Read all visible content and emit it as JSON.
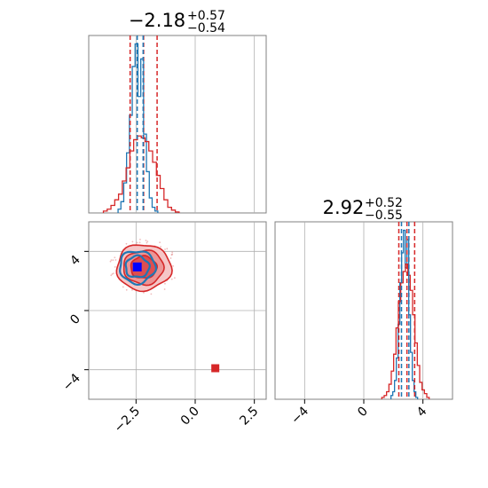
{
  "chart_data": {
    "type": "corner",
    "grid": true,
    "colors": {
      "blue": "#1f77b4",
      "red": "#d62728",
      "axis": "#808080",
      "grid": "#b0b0b0"
    },
    "panels": [
      {
        "id": "marginal-param-1",
        "type": "histogram",
        "title": {
          "median": "−2.18",
          "plus": "+0.57",
          "minus": "−0.54"
        },
        "xlim": [
          -4.5,
          3.0
        ],
        "quantile_lines": {
          "red": [
            -2.75,
            -2.18,
            -1.61
          ],
          "blue": [
            -2.45,
            -2.2
          ]
        },
        "series": [
          {
            "name": "",
            "color": "#1f77b4",
            "bin_width": 0.12,
            "x": [
              -3.2,
              -3.08,
              -2.96,
              -2.84,
              -2.72,
              -2.6,
              -2.48,
              -2.36,
              -2.24,
              -2.12,
              -2.0,
              -1.88,
              -1.76,
              -1.64
            ],
            "values": [
              0.02,
              0.06,
              0.16,
              0.32,
              0.52,
              0.78,
              0.9,
              0.62,
              0.82,
              0.42,
              0.22,
              0.08,
              0.03,
              0.01
            ]
          },
          {
            "name": "",
            "color": "#d62728",
            "bin_width": 0.16,
            "x": [
              -3.8,
              -3.64,
              -3.48,
              -3.32,
              -3.16,
              -3.0,
              -2.84,
              -2.68,
              -2.52,
              -2.36,
              -2.2,
              -2.04,
              -1.88,
              -1.72,
              -1.56,
              -1.4,
              -1.24,
              -1.08,
              -0.92,
              -0.76
            ],
            "values": [
              0.01,
              0.02,
              0.04,
              0.07,
              0.1,
              0.17,
              0.24,
              0.33,
              0.39,
              0.41,
              0.4,
              0.38,
              0.33,
              0.27,
              0.2,
              0.13,
              0.07,
              0.03,
              0.015,
              0.005
            ]
          }
        ]
      },
      {
        "id": "marginal-param-2",
        "type": "histogram",
        "title": {
          "median": "2.92",
          "plus": "+0.52",
          "minus": "−0.55"
        },
        "xlim": [
          -6.0,
          6.0
        ],
        "quantile_lines": {
          "red": [
            2.37,
            2.92,
            3.44
          ],
          "blue": [
            2.55,
            3.05
          ]
        },
        "series": [
          {
            "name": "",
            "color": "#1f77b4",
            "bin_width": 0.12,
            "x": [
              1.9,
              2.02,
              2.14,
              2.26,
              2.38,
              2.5,
              2.62,
              2.74,
              2.86,
              2.98,
              3.1,
              3.22,
              3.34,
              3.46,
              3.58
            ],
            "values": [
              0.02,
              0.04,
              0.1,
              0.22,
              0.4,
              0.62,
              0.78,
              0.9,
              0.7,
              0.85,
              0.45,
              0.25,
              0.1,
              0.04,
              0.01
            ]
          },
          {
            "name": "",
            "color": "#d62728",
            "bin_width": 0.16,
            "x": [
              1.3,
              1.46,
              1.62,
              1.78,
              1.94,
              2.1,
              2.26,
              2.42,
              2.58,
              2.74,
              2.9,
              3.06,
              3.22,
              3.38,
              3.54,
              3.7,
              3.86,
              4.02,
              4.18,
              4.34
            ],
            "values": [
              0.01,
              0.02,
              0.04,
              0.08,
              0.15,
              0.24,
              0.38,
              0.52,
              0.62,
              0.68,
              0.72,
              0.66,
              0.58,
              0.45,
              0.3,
              0.18,
              0.09,
              0.05,
              0.03,
              0.01
            ]
          }
        ]
      },
      {
        "id": "joint-param-1-vs-param-2",
        "type": "contour",
        "xlim": [
          -4.5,
          3.0
        ],
        "ylim": [
          -6.0,
          6.0
        ],
        "series": [
          {
            "name": "",
            "color": "#d62728",
            "center": [
              -2.18,
              2.92
            ],
            "sigma_levels": [
              {
                "fill": "#f5c6c7",
                "rx": 1.15,
                "ry": 1.55
              },
              {
                "fill": "#ec9596",
                "rx": 0.85,
                "ry": 1.15
              },
              {
                "fill": "#de4e50",
                "rx": 0.55,
                "ry": 0.75
              }
            ],
            "outlier": [
              0.85,
              -3.9
            ]
          },
          {
            "name": "",
            "color": "#1f77b4",
            "center": [
              -2.45,
              2.95
            ],
            "sigma_levels": [
              {
                "rx": 0.75,
                "ry": 1.1
              },
              {
                "rx": 0.5,
                "ry": 0.72
              }
            ]
          }
        ],
        "truth_markers": [
          {
            "color": "#0000ff",
            "x": -2.45,
            "y": 2.95
          }
        ]
      }
    ],
    "axes": {
      "x_bottom_left": {
        "ticks": [
          -2.5,
          0.0,
          2.5
        ],
        "tick_labels": [
          "−2.5",
          "0.0",
          "2.5"
        ]
      },
      "y_left_joint": {
        "ticks": [
          4,
          0,
          -4
        ],
        "tick_labels": [
          "4",
          "0",
          "−4"
        ]
      },
      "x_bottom_right": {
        "ticks": [
          -4,
          0,
          4
        ],
        "tick_labels": [
          "−4",
          "0",
          "4"
        ]
      }
    }
  }
}
